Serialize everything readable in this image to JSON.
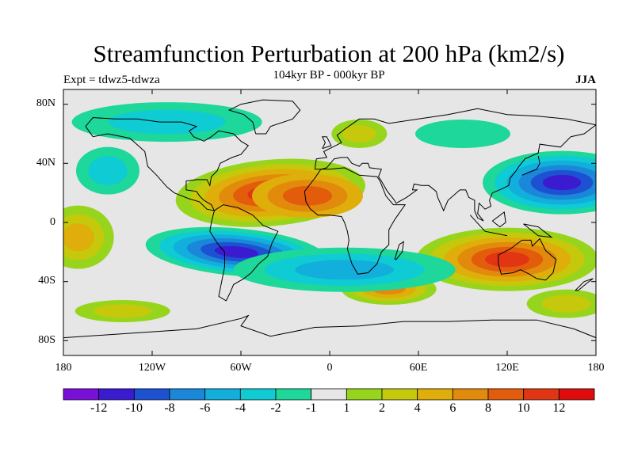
{
  "title": "Streamfunction Perturbation at 200 hPa (km2/s)",
  "left_annotation": "Expt = tdwz5-tdwza",
  "center_annotation": "104kyr BP - 000kyr BP",
  "right_annotation": "JJA",
  "map": {
    "projection": "cylindrical-equidistant",
    "lon_range": [
      -180,
      180
    ],
    "lat_range": [
      -90,
      90
    ],
    "lat_tick_labels": [
      "80N",
      "40N",
      "0",
      "40S",
      "80S"
    ],
    "lon_tick_labels": [
      "180",
      "120W",
      "60W",
      "0",
      "60E",
      "120E",
      "180"
    ],
    "background_color": "#e6e6e6",
    "coastline_color": "#000000"
  },
  "colorbar": {
    "labels": [
      "-12",
      "-10",
      "-8",
      "-6",
      "-4",
      "-2",
      "-1",
      "1",
      "2",
      "4",
      "6",
      "8",
      "10",
      "12"
    ],
    "colors": [
      "#7a10d8",
      "#3b1bd0",
      "#1c52d2",
      "#1a87d8",
      "#12aedc",
      "#0fcbd3",
      "#1ed79a",
      "#e6e6e6",
      "#97d51c",
      "#c6c80c",
      "#dfae0a",
      "#e28a0c",
      "#e35c0c",
      "#e23513",
      "#de0c0c"
    ]
  },
  "features": {
    "positive_centers": [
      {
        "name": "North Atlantic ridge",
        "lon": -50,
        "lat": 22,
        "peak_level": "10-12"
      },
      {
        "name": "Australian ridge",
        "lon": 120,
        "lat": -25,
        "peak_level": "10-12"
      },
      {
        "name": "South Indian Ocean",
        "lon": 40,
        "lat": -45,
        "peak_level": "6-8"
      }
    ],
    "negative_centers": [
      {
        "name": "South America / South Atlantic",
        "lon": -63,
        "lat": -20,
        "peak_level": "-12 to -10"
      },
      {
        "name": "Northwest Pacific",
        "lon": 157,
        "lat": 27,
        "peak_level": "-12 to -10"
      }
    ]
  }
}
